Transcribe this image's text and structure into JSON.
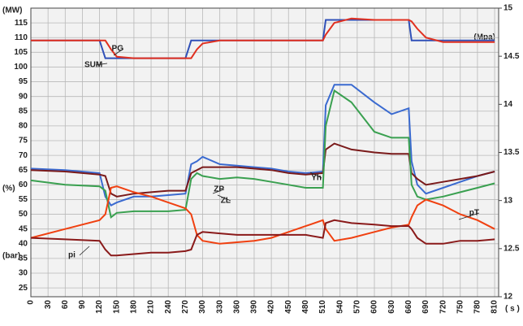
{
  "chart_data": {
    "type": "line",
    "y_unit_label": "(MW)",
    "y_unit_label_2": "(%)",
    "y_unit_label_3": "(bar)",
    "y2_unit_label": "(Mpa)",
    "x_unit_label": "( s )",
    "x": [
      0,
      60,
      120,
      130,
      140,
      150,
      180,
      210,
      240,
      270,
      280,
      290,
      300,
      330,
      360,
      390,
      420,
      450,
      480,
      510,
      515,
      530,
      560,
      600,
      630,
      660,
      665,
      675,
      690,
      720,
      750,
      780,
      810
    ],
    "series": [
      {
        "name": "SUM",
        "color": "#3050b8",
        "values": [
          109,
          109,
          109,
          103,
          103,
          103,
          103,
          103,
          103,
          103,
          109,
          109,
          109,
          109,
          109,
          109,
          109,
          109,
          109,
          109,
          116,
          116,
          116,
          116,
          116,
          116,
          109,
          109,
          109,
          109,
          109,
          109,
          109
        ]
      },
      {
        "name": "PG",
        "color": "#e03020",
        "values": [
          109,
          109,
          109,
          109,
          106,
          103.5,
          103,
          103,
          103,
          103,
          103,
          106,
          108,
          109,
          109,
          109,
          109,
          109,
          109,
          109,
          111,
          115,
          116.5,
          116,
          116,
          116,
          115.5,
          113,
          110,
          108.5,
          108.5,
          108.5,
          108.5
        ]
      },
      {
        "name": "ZP",
        "color": "#3a6ad0",
        "values": [
          65.5,
          65,
          64,
          56,
          53,
          54,
          56,
          56,
          56.5,
          57,
          67,
          68,
          69.5,
          67,
          66.5,
          66,
          65.5,
          64.5,
          64,
          64.5,
          87,
          94,
          94,
          88,
          84,
          86,
          68,
          60,
          57,
          59,
          61,
          63,
          64.5
        ]
      },
      {
        "name": "Yh",
        "color": "#7a1a1a",
        "values": [
          65,
          64.5,
          63.5,
          63,
          57,
          56,
          57,
          57.5,
          58,
          58,
          64,
          65,
          66,
          66,
          66,
          65.5,
          65,
          64,
          63.5,
          64,
          72,
          74,
          72,
          71,
          70.5,
          70.5,
          64,
          62,
          60,
          61,
          62,
          63,
          64.5
        ]
      },
      {
        "name": "ZL",
        "color": "#3aa050",
        "values": [
          61.5,
          60,
          59.5,
          58,
          49,
          50.5,
          51,
          51,
          51,
          51.5,
          62,
          64,
          63,
          62,
          62.5,
          62,
          61,
          60,
          59,
          59,
          80,
          92,
          88,
          78,
          76,
          76,
          60,
          56,
          55,
          56,
          57.5,
          59,
          60.5
        ]
      },
      {
        "name": "pT",
        "color": "#f04010",
        "values": [
          42,
          45,
          48,
          50,
          59,
          59.5,
          57.5,
          56,
          54,
          52,
          50,
          43,
          41,
          40,
          40.5,
          41,
          42,
          44,
          46,
          48,
          45,
          41,
          42,
          44,
          45.5,
          46.5,
          49,
          53,
          55,
          53,
          50,
          48,
          45
        ]
      },
      {
        "name": "pi",
        "color": "#8a1a1a",
        "values": [
          42,
          41.5,
          41,
          38,
          36,
          36,
          36.5,
          37,
          37,
          37.5,
          38,
          43,
          44,
          43.5,
          43,
          43,
          43,
          43,
          43,
          42,
          47,
          48,
          47,
          46.5,
          46,
          46,
          45,
          42,
          40,
          40,
          41,
          41,
          41.5
        ]
      }
    ],
    "xlim": [
      0,
      817
    ],
    "xticks": [
      0,
      30,
      60,
      90,
      120,
      150,
      180,
      210,
      240,
      270,
      300,
      330,
      360,
      390,
      420,
      450,
      480,
      510,
      540,
      570,
      600,
      630,
      660,
      690,
      720,
      750,
      780,
      810
    ],
    "ylim": [
      22,
      120
    ],
    "yticks": [
      25,
      30,
      35,
      40,
      45,
      50,
      55,
      60,
      65,
      70,
      75,
      80,
      85,
      90,
      95,
      100,
      105,
      110,
      115
    ],
    "y2lim": [
      12,
      15
    ],
    "y2ticks": [
      12,
      12.5,
      13,
      13.5,
      14,
      14.5,
      15
    ],
    "grid": true
  }
}
